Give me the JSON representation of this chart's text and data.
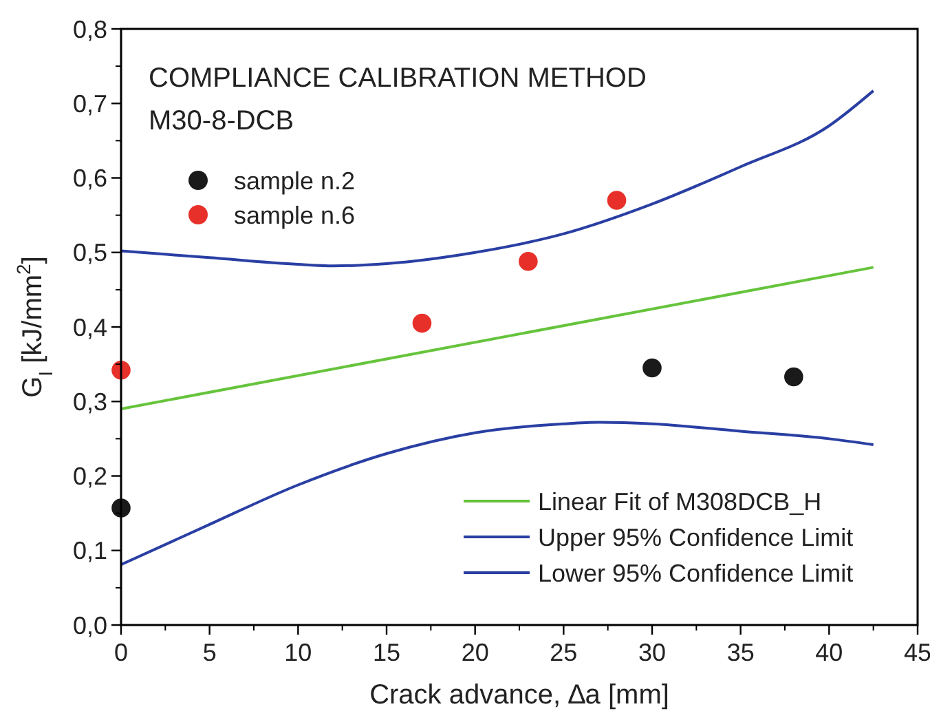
{
  "chart_data": {
    "type": "line",
    "title": "COMPLIANCE CALIBRATION METHOD",
    "subtitle": "M30-8-DCB",
    "xlabel": "Crack advance, ∆a [mm]",
    "ylabel": "G$_{I}$ [kJ/mm$^{2}$]",
    "xlim": [
      0,
      45
    ],
    "xticks": [
      0,
      5,
      10,
      15,
      20,
      25,
      30,
      35,
      40,
      45
    ],
    "ylim": [
      0,
      0.8
    ],
    "yticks": [
      {
        "value": 0,
        "label": "0,0"
      },
      {
        "value": 0.1,
        "label": "0,1"
      },
      {
        "value": 0.2,
        "label": "0,2"
      },
      {
        "value": 0.3,
        "label": "0,3"
      },
      {
        "value": 0.4,
        "label": "0,4"
      },
      {
        "value": 0.5,
        "label": "0,5"
      },
      {
        "value": 0.6,
        "label": "0,6"
      },
      {
        "value": 0.7,
        "label": "0,7"
      },
      {
        "value": 0.8,
        "label": "0,8"
      }
    ],
    "grid": false,
    "legend": "bottom right",
    "series": [
      {
        "name": "sample n.2",
        "type": "scatter",
        "marker": "circle",
        "color": "#1a1a1a",
        "x": [
          0,
          30,
          38
        ],
        "values": [
          0.157,
          0.345,
          0.333
        ]
      },
      {
        "name": "sample n.6",
        "type": "scatter",
        "marker": "circle",
        "color": "#e8302a",
        "x": [
          0,
          17,
          23,
          28
        ],
        "values": [
          0.342,
          0.405,
          0.488,
          0.57
        ]
      },
      {
        "name": "Linear Fit of M308DCB_H",
        "color": "#66c43c",
        "x": [
          0,
          42.5
        ],
        "values": [
          0.29,
          0.48
        ]
      },
      {
        "name": "Upper 95% Confidence Limit",
        "color": "#2a3fa3",
        "x": [
          0,
          5,
          10,
          12,
          15,
          20,
          25,
          30,
          35,
          40,
          42.5
        ],
        "values": [
          0.502,
          0.493,
          0.484,
          0.482,
          0.485,
          0.5,
          0.525,
          0.565,
          0.615,
          0.67,
          0.717
        ]
      },
      {
        "name": "Lower 95% Confidence Limit",
        "color": "#2a3fa3",
        "x": [
          0,
          5,
          10,
          15,
          20,
          25,
          27,
          30,
          35,
          40,
          42.5
        ],
        "values": [
          0.081,
          0.135,
          0.188,
          0.23,
          0.258,
          0.27,
          0.272,
          0.27,
          0.26,
          0.25,
          0.242
        ]
      }
    ]
  }
}
